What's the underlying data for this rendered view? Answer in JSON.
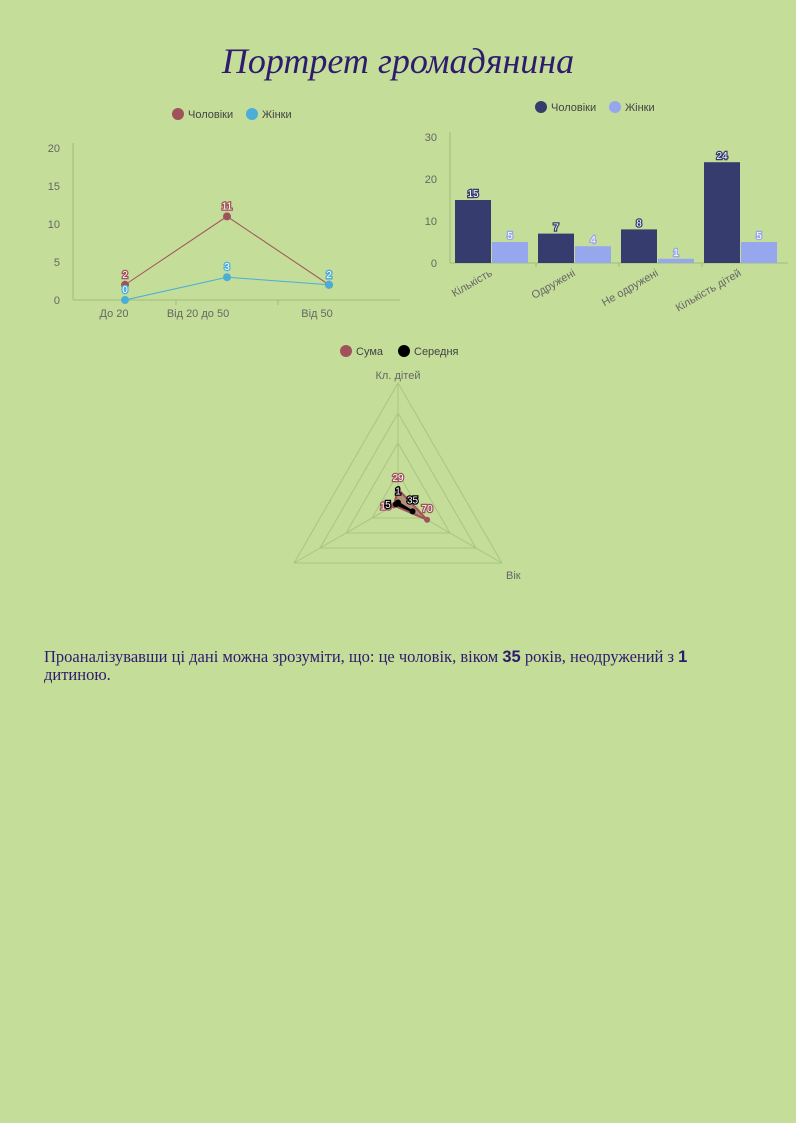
{
  "page": {
    "title": "Портрет громадянина",
    "conclusion": {
      "text_before_age": "Проаналізувавши ці дані можна зрозуміти, що: це чоловік, віком ",
      "age": "35",
      "text_after_age": " років, неодружений з ",
      "children": "1",
      "text_end": " дитиною."
    }
  },
  "chart_data": [
    {
      "type": "line",
      "categories": [
        "До 20",
        "Від 20 до 50",
        "Від 50"
      ],
      "series": [
        {
          "name": "Чоловіки",
          "values": [
            2,
            11,
            2
          ],
          "color": "#a0525a"
        },
        {
          "name": "Жінки",
          "values": [
            0,
            3,
            2
          ],
          "color": "#4aaed8"
        }
      ],
      "ylim": [
        0,
        20
      ],
      "yticks": [
        0,
        5,
        10,
        15,
        20
      ],
      "legend": "top-center",
      "data_labels": true,
      "grid": false
    },
    {
      "type": "bar",
      "categories": [
        "Кількість",
        "Одружені",
        "Не одружені",
        "Кількість дітей"
      ],
      "series": [
        {
          "name": "Чоловіки",
          "values": [
            15,
            7,
            8,
            24
          ],
          "color": "#373c6e"
        },
        {
          "name": "Жінки",
          "values": [
            5,
            4,
            1,
            5
          ],
          "color": "#97a7ee"
        }
      ],
      "ylim": [
        0,
        30
      ],
      "yticks": [
        0,
        10,
        20,
        30
      ],
      "legend": "top-center",
      "data_labels": true,
      "grid": false
    },
    {
      "type": "radar",
      "axes": [
        "Кл. дітей",
        "Вік",
        ""
      ],
      "series": [
        {
          "name": "Сума",
          "values": [
            29,
            70,
            10
          ],
          "color": "#a0525a"
        },
        {
          "name": "Середня",
          "values": [
            1,
            35,
            5
          ],
          "color": "#000000"
        }
      ],
      "rmax": 250,
      "legend": "top-center",
      "data_labels": true
    }
  ]
}
